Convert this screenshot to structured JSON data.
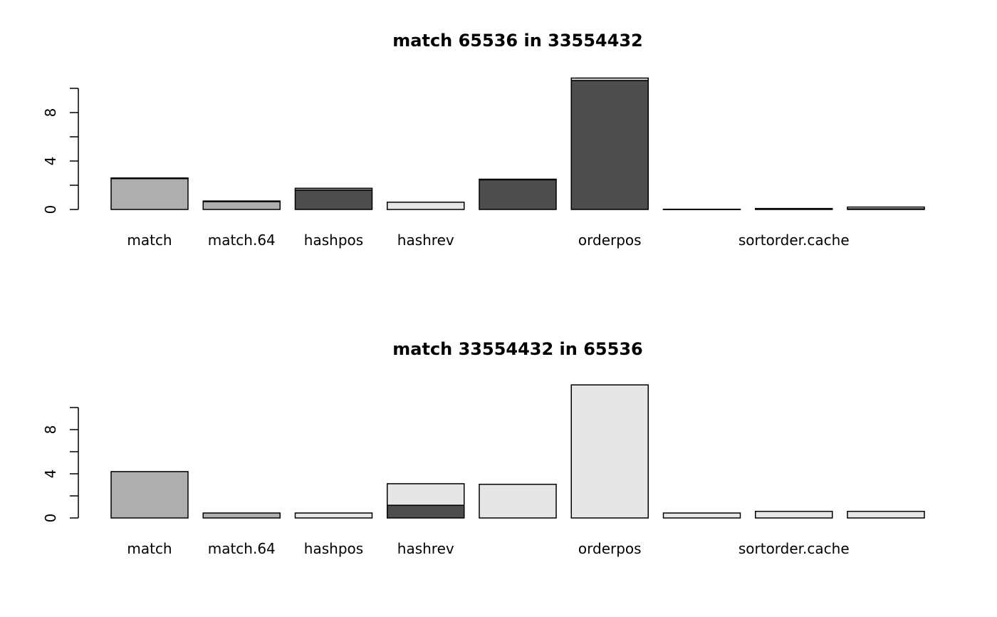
{
  "chart_data": [
    {
      "type": "bar",
      "stacked": true,
      "title": "match 65536 in 33554432",
      "xlabel": "",
      "ylabel": "",
      "ylim": [
        0,
        10
      ],
      "y_ticks": [
        0,
        2,
        4,
        6,
        8,
        10
      ],
      "y_tick_labels": [
        "0",
        "4",
        "8"
      ],
      "categories": [
        "match",
        "match.64",
        "hashpos",
        "hashrev",
        "",
        "orderpos",
        "",
        "sortorder.cache",
        ""
      ],
      "segment_colors": [
        "#4d4d4d",
        "#aeaeae",
        "#e6e6e6"
      ],
      "bars": [
        {
          "segments": [
            {
              "value": 0.0,
              "color": "#4d4d4d"
            },
            {
              "value": 2.55,
              "color": "#aeaeae"
            },
            {
              "value": 0.05,
              "color": "#e6e6e6"
            }
          ]
        },
        {
          "segments": [
            {
              "value": 0.0,
              "color": "#4d4d4d"
            },
            {
              "value": 0.65,
              "color": "#aeaeae"
            },
            {
              "value": 0.05,
              "color": "#e6e6e6"
            }
          ]
        },
        {
          "segments": [
            {
              "value": 1.6,
              "color": "#4d4d4d"
            },
            {
              "value": 0.15,
              "color": "#aeaeae"
            },
            {
              "value": 0.0,
              "color": "#e6e6e6"
            }
          ]
        },
        {
          "segments": [
            {
              "value": 0.0,
              "color": "#4d4d4d"
            },
            {
              "value": 0.0,
              "color": "#aeaeae"
            },
            {
              "value": 0.6,
              "color": "#e6e6e6"
            }
          ]
        },
        {
          "segments": [
            {
              "value": 2.45,
              "color": "#4d4d4d"
            },
            {
              "value": 0.05,
              "color": "#aeaeae"
            },
            {
              "value": 0.0,
              "color": "#e6e6e6"
            }
          ]
        },
        {
          "segments": [
            {
              "value": 10.65,
              "color": "#4d4d4d"
            },
            {
              "value": 0.0,
              "color": "#aeaeae"
            },
            {
              "value": 0.2,
              "color": "#e6e6e6"
            }
          ]
        },
        {
          "segments": [
            {
              "value": 0.0,
              "color": "#4d4d4d"
            },
            {
              "value": 0.0,
              "color": "#aeaeae"
            },
            {
              "value": 0.02,
              "color": "#e6e6e6"
            }
          ]
        },
        {
          "segments": [
            {
              "value": 0.05,
              "color": "#4d4d4d"
            },
            {
              "value": 0.0,
              "color": "#aeaeae"
            },
            {
              "value": 0.03,
              "color": "#e6e6e6"
            }
          ]
        },
        {
          "segments": [
            {
              "value": 0.05,
              "color": "#4d4d4d"
            },
            {
              "value": 0.0,
              "color": "#aeaeae"
            },
            {
              "value": 0.15,
              "color": "#e6e6e6"
            }
          ]
        }
      ]
    },
    {
      "type": "bar",
      "stacked": true,
      "title": "match 33554432 in 65536",
      "xlabel": "",
      "ylabel": "",
      "ylim": [
        0,
        10
      ],
      "y_ticks": [
        0,
        2,
        4,
        6,
        8,
        10
      ],
      "y_tick_labels": [
        "0",
        "4",
        "8"
      ],
      "categories": [
        "match",
        "match.64",
        "hashpos",
        "hashrev",
        "",
        "orderpos",
        "",
        "sortorder.cache",
        ""
      ],
      "segment_colors": [
        "#4d4d4d",
        "#aeaeae",
        "#e6e6e6"
      ],
      "bars": [
        {
          "segments": [
            {
              "value": 0.0,
              "color": "#4d4d4d"
            },
            {
              "value": 4.2,
              "color": "#aeaeae"
            },
            {
              "value": 0.0,
              "color": "#e6e6e6"
            }
          ]
        },
        {
          "segments": [
            {
              "value": 0.0,
              "color": "#4d4d4d"
            },
            {
              "value": 0.45,
              "color": "#aeaeae"
            },
            {
              "value": 0.0,
              "color": "#e6e6e6"
            }
          ]
        },
        {
          "segments": [
            {
              "value": 0.0,
              "color": "#4d4d4d"
            },
            {
              "value": 0.0,
              "color": "#aeaeae"
            },
            {
              "value": 0.45,
              "color": "#e6e6e6"
            }
          ]
        },
        {
          "segments": [
            {
              "value": 1.15,
              "color": "#4d4d4d"
            },
            {
              "value": 0.0,
              "color": "#aeaeae"
            },
            {
              "value": 1.95,
              "color": "#e6e6e6"
            }
          ]
        },
        {
          "segments": [
            {
              "value": 0.0,
              "color": "#4d4d4d"
            },
            {
              "value": 0.0,
              "color": "#aeaeae"
            },
            {
              "value": 3.05,
              "color": "#e6e6e6"
            }
          ]
        },
        {
          "segments": [
            {
              "value": 0.0,
              "color": "#4d4d4d"
            },
            {
              "value": 0.0,
              "color": "#aeaeae"
            },
            {
              "value": 12.05,
              "color": "#e6e6e6"
            }
          ]
        },
        {
          "segments": [
            {
              "value": 0.0,
              "color": "#4d4d4d"
            },
            {
              "value": 0.0,
              "color": "#aeaeae"
            },
            {
              "value": 0.45,
              "color": "#e6e6e6"
            }
          ]
        },
        {
          "segments": [
            {
              "value": 0.0,
              "color": "#4d4d4d"
            },
            {
              "value": 0.0,
              "color": "#aeaeae"
            },
            {
              "value": 0.6,
              "color": "#e6e6e6"
            }
          ]
        },
        {
          "segments": [
            {
              "value": 0.0,
              "color": "#4d4d4d"
            },
            {
              "value": 0.0,
              "color": "#aeaeae"
            },
            {
              "value": 0.6,
              "color": "#e6e6e6"
            }
          ]
        }
      ]
    }
  ]
}
